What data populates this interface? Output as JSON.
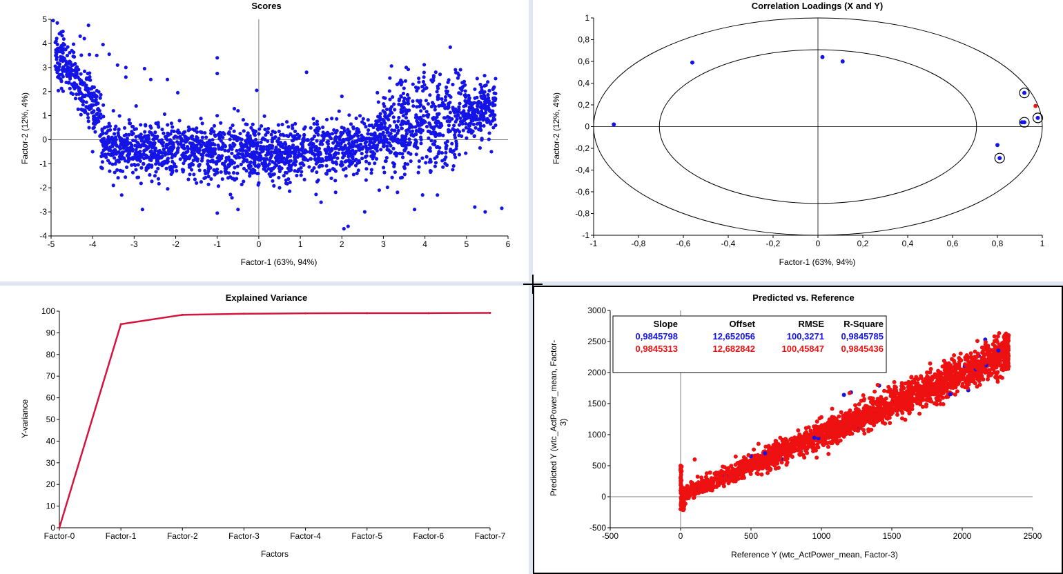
{
  "colors": {
    "blue": "#1414e6",
    "red": "#ee1111",
    "axis": "#000000",
    "refline": "#808080",
    "variance_line": "#d4143c",
    "panel_bg": "#ffffff",
    "app_bg": "#dfe6ef"
  },
  "charts": {
    "scores": {
      "title": "Scores",
      "xlabel": "Factor-1 (63%, 94%)",
      "ylabel": "Factor-2 (12%, 4%)",
      "xticks": [
        "-5",
        "-4",
        "-3",
        "-2",
        "-1",
        "0",
        "1",
        "2",
        "3",
        "4",
        "5",
        "6"
      ],
      "yticks": [
        "5",
        "4",
        "3",
        "2",
        "1",
        "0",
        "-1",
        "-2",
        "-3",
        "-4"
      ]
    },
    "loadings": {
      "title": "Correlation Loadings (X and Y)",
      "xlabel": "Factor-1 (63%, 94%)",
      "ylabel": "Factor-2 (12%, 4%)",
      "xticks": [
        "-1",
        "-0,8",
        "-0,6",
        "-0,4",
        "-0,2",
        "0",
        "0,2",
        "0,4",
        "0,6",
        "0,8",
        "1"
      ],
      "yticks": [
        "1",
        "0,8",
        "0,6",
        "0,4",
        "0,2",
        "0",
        "-0,2",
        "-0,4",
        "-0,6",
        "-0,8",
        "-1"
      ]
    },
    "variance": {
      "title": "Explained Variance",
      "xlabel": "Factors",
      "ylabel": "Y-variance",
      "xticks": [
        "Factor-0",
        "Factor-1",
        "Factor-2",
        "Factor-3",
        "Factor-4",
        "Factor-5",
        "Factor-6",
        "Factor-7"
      ],
      "yticks": [
        "100",
        "90",
        "80",
        "70",
        "60",
        "50",
        "40",
        "30",
        "20",
        "10",
        "0"
      ]
    },
    "predref": {
      "title": "Predicted vs. Reference",
      "xlabel": "Reference Y (wtc_ActPower_mean, Factor-3)",
      "ylabel_line1": "Predicted Y (wtc_ActPower_mean, Factor-",
      "ylabel_line2": "3)",
      "xticks": [
        "-500",
        "0",
        "500",
        "1000",
        "1500",
        "2000",
        "2500"
      ],
      "yticks": [
        "3000",
        "2500",
        "2000",
        "1500",
        "1000",
        "500",
        "0",
        "-500"
      ],
      "stats": {
        "headers": [
          "Slope",
          "Offset",
          "RMSE",
          "R-Square"
        ],
        "row_blue": [
          "0,9845798",
          "12,652056",
          "100,3271",
          "0,9845785"
        ],
        "row_red": [
          "0,9845313",
          "12,682842",
          "100,45847",
          "0,9845436"
        ]
      }
    }
  },
  "chart_data": [
    {
      "type": "scatter",
      "title": "Scores",
      "xlabel": "Factor-1 (63%, 94%)",
      "ylabel": "Factor-2 (12%, 4%)",
      "xlim": [
        -5,
        6
      ],
      "ylim": [
        -4,
        5
      ],
      "grid": false,
      "reference_lines": {
        "x": 0,
        "y": 0
      },
      "series": [
        {
          "color": "#1414e6",
          "points": [
            [
              -4.95,
              4.95
            ],
            [
              -4.85,
              4.85
            ],
            [
              -4.8,
              4.4
            ],
            [
              -4.75,
              3.9
            ],
            [
              -4.6,
              3.85
            ],
            [
              -4.5,
              3.7
            ],
            [
              -4.3,
              4.3
            ],
            [
              -4.2,
              4.2
            ],
            [
              -4.1,
              4.75
            ],
            [
              -3.9,
              3.5
            ],
            [
              -3.75,
              3.95
            ],
            [
              -3.6,
              3.55
            ],
            [
              -3.4,
              3.1
            ],
            [
              -3.2,
              2.6
            ],
            [
              -3.2,
              3.0
            ],
            [
              -2.75,
              2.95
            ],
            [
              -2.6,
              2.5
            ],
            [
              -2.2,
              2.5
            ],
            [
              -1.95,
              1.95
            ],
            [
              -1.0,
              3.4
            ],
            [
              -1.0,
              2.75
            ],
            [
              -0.5,
              1.2
            ],
            [
              -0.05,
              2.05
            ],
            [
              1.15,
              2.8
            ],
            [
              2.0,
              1.8
            ],
            [
              3.55,
              3.0
            ],
            [
              3.85,
              2.55
            ],
            [
              4.35,
              2.3
            ],
            [
              5.15,
              1.3
            ],
            [
              5.6,
              -0.5
            ],
            [
              5.7,
              0.6
            ],
            [
              5.2,
              -2.8
            ],
            [
              5.45,
              -3.0
            ],
            [
              5.85,
              -2.85
            ],
            [
              3.75,
              -2.9
            ],
            [
              4.3,
              -2.3
            ],
            [
              2.05,
              -3.7
            ],
            [
              2.15,
              -3.6
            ],
            [
              2.55,
              -3.0
            ],
            [
              -1.0,
              -3.05
            ],
            [
              -2.8,
              -2.9
            ],
            [
              -3.5,
              -1.9
            ],
            [
              -3.3,
              -2.3
            ],
            [
              -0.5,
              -2.9
            ],
            [
              0.5,
              -2.0
            ],
            [
              1.5,
              -2.6
            ],
            [
              2.9,
              -2.1
            ],
            [
              -4.0,
              -0.5
            ],
            [
              -3.8,
              0.2
            ],
            [
              -2.5,
              -1.5
            ],
            [
              -1.5,
              -1.8
            ],
            [
              0.0,
              -1.8
            ],
            [
              1.0,
              -1.0
            ],
            [
              3.0,
              0.5
            ],
            [
              4.2,
              0.3
            ],
            [
              4.8,
              1.0
            ],
            [
              3.6,
              1.5
            ],
            [
              -4.4,
              2.8
            ],
            [
              -3.9,
              1.8
            ],
            [
              -3.5,
              1.2
            ]
          ]
        }
      ]
    },
    {
      "type": "scatter",
      "title": "Correlation Loadings (X and Y)",
      "xlabel": "Factor-1 (63%, 94%)",
      "ylabel": "Factor-2 (12%, 4%)",
      "xlim": [
        -1,
        1
      ],
      "ylim": [
        -1,
        1
      ],
      "reference_lines": {
        "x": 0,
        "y": 0
      },
      "circles_radius": [
        1.0,
        0.707
      ],
      "series": [
        {
          "name": "X",
          "color": "#1414e6",
          "points": [
            [
              -0.91,
              0.02
            ],
            [
              -0.56,
              0.59
            ],
            [
              0.02,
              0.64
            ],
            [
              0.11,
              0.6
            ],
            [
              0.8,
              -0.17
            ],
            [
              0.81,
              -0.29
            ],
            [
              0.92,
              0.31
            ],
            [
              0.91,
              0.04
            ],
            [
              0.92,
              0.04
            ],
            [
              0.98,
              0.08
            ]
          ],
          "circled": [
            [
              0.92,
              0.31
            ],
            [
              0.92,
              0.04
            ],
            [
              0.98,
              0.08
            ],
            [
              0.81,
              -0.29
            ]
          ]
        },
        {
          "name": "Y",
          "color": "#ee1111",
          "points": [
            [
              0.97,
              0.19
            ]
          ]
        }
      ]
    },
    {
      "type": "line",
      "title": "Explained Variance",
      "xlabel": "Factors",
      "ylabel": "Y-variance",
      "categories": [
        "Factor-0",
        "Factor-1",
        "Factor-2",
        "Factor-3",
        "Factor-4",
        "Factor-5",
        "Factor-6",
        "Factor-7"
      ],
      "values": [
        0,
        94,
        98.3,
        98.8,
        99.0,
        99.1,
        99.1,
        99.2
      ],
      "ylim": [
        0,
        100
      ]
    },
    {
      "type": "scatter",
      "title": "Predicted vs. Reference",
      "xlabel": "Reference Y (wtc_ActPower_mean, Factor-3)",
      "ylabel": "Predicted Y (wtc_ActPower_mean, Factor-3)",
      "xlim": [
        -500,
        2500
      ],
      "ylim": [
        -500,
        3000
      ],
      "reference_lines": {
        "x": 0,
        "y": 0
      },
      "trend": {
        "from": [
          0,
          12
        ],
        "to": [
          2330,
          2310
        ]
      },
      "series": [
        {
          "color": "#1414e6",
          "points": [
            [
              1160,
              1640
            ],
            [
              1410,
              1790
            ],
            [
              1210,
              1680
            ],
            [
              600,
              700
            ],
            [
              950,
              950
            ]
          ]
        },
        {
          "color": "#ee1111",
          "points": [
            [
              0,
              -200
            ],
            [
              0,
              100
            ],
            [
              0,
              300
            ],
            [
              0,
              500
            ],
            [
              100,
              600
            ],
            [
              300,
              400
            ],
            [
              520,
              760
            ],
            [
              1200,
              1670
            ],
            [
              1000,
              1280
            ],
            [
              1400,
              1800
            ],
            [
              2330,
              2600
            ],
            [
              2330,
              2100
            ],
            [
              2300,
              2500
            ],
            [
              1900,
              2100
            ],
            [
              1800,
              1650
            ],
            [
              1750,
              2000
            ],
            [
              700,
              700
            ],
            [
              400,
              330
            ]
          ]
        }
      ],
      "stats": {
        "headers": [
          "Slope",
          "Offset",
          "RMSE",
          "R-Square"
        ],
        "blue": [
          0.9845798,
          12.652056,
          100.3271,
          0.9845785
        ],
        "red": [
          0.9845313,
          12.682842,
          100.45847,
          0.9845436
        ]
      }
    }
  ]
}
